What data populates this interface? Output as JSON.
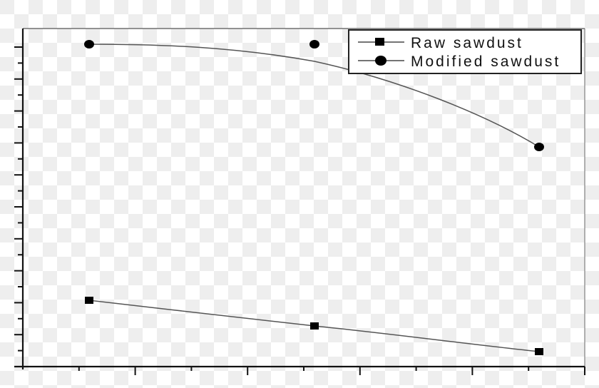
{
  "chart_data": {
    "type": "line",
    "title": "",
    "xlabel": "",
    "ylabel": "",
    "x": [
      1,
      2,
      3
    ],
    "series": [
      {
        "name": "Raw sawdust",
        "marker": "square",
        "values": [
          2.1,
          1.3,
          0.5
        ]
      },
      {
        "name": "Modified sawdust",
        "marker": "circle",
        "values": [
          10.1,
          10.1,
          6.9
        ]
      }
    ],
    "ylim": [
      0,
      10.6
    ],
    "xlim": [
      0,
      3.95
    ],
    "grid": false,
    "tick_labels_visible": false,
    "legend_position": "upper right",
    "notes": "Axes carry ticks but no numeric labels; values estimated in major-tick units from the bottom axis."
  },
  "legend": {
    "items": [
      {
        "label": "Raw sawdust",
        "marker": "square"
      },
      {
        "label": "Modified sawdust",
        "marker": "circle"
      }
    ]
  },
  "colors": {
    "line": "#555555",
    "marker": "#000000",
    "axis": "#111111"
  }
}
